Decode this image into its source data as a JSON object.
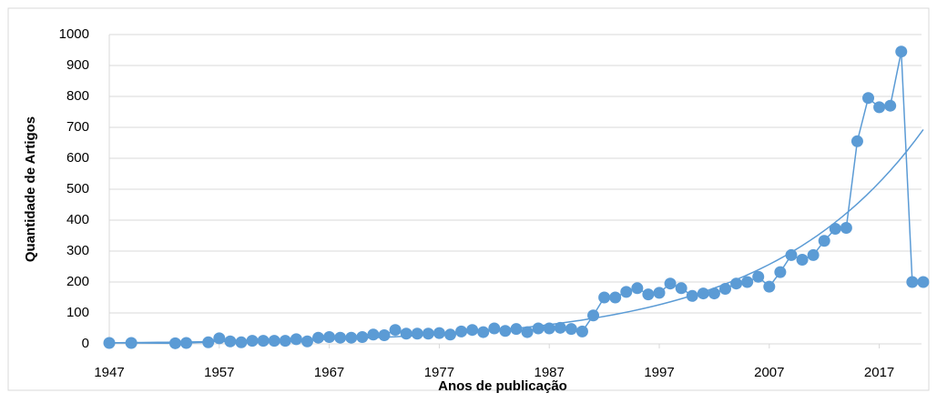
{
  "chart_data": {
    "type": "line",
    "xlabel": "Anos de publicação",
    "ylabel": "Quantidade de Artigos",
    "x": [
      1947,
      1949,
      1953,
      1954,
      1956,
      1957,
      1958,
      1959,
      1960,
      1961,
      1962,
      1963,
      1964,
      1965,
      1966,
      1967,
      1968,
      1969,
      1970,
      1971,
      1972,
      1973,
      1974,
      1975,
      1976,
      1977,
      1978,
      1979,
      1980,
      1981,
      1982,
      1983,
      1984,
      1985,
      1986,
      1987,
      1988,
      1989,
      1990,
      1991,
      1992,
      1993,
      1994,
      1995,
      1996,
      1997,
      1998,
      1999,
      2000,
      2001,
      2002,
      2003,
      2004,
      2005,
      2006,
      2007,
      2008,
      2009,
      2010,
      2011,
      2012,
      2013,
      2014,
      2015,
      2016,
      2017,
      2018,
      2019,
      2020,
      2021
    ],
    "series": [
      {
        "color": "#5b9bd5",
        "values": [
          3,
          3,
          2,
          3,
          5,
          18,
          8,
          5,
          10,
          10,
          10,
          10,
          15,
          8,
          20,
          22,
          20,
          20,
          22,
          30,
          28,
          45,
          33,
          33,
          33,
          35,
          30,
          40,
          45,
          38,
          50,
          42,
          48,
          38,
          50,
          50,
          52,
          48,
          40,
          92,
          150,
          150,
          168,
          180,
          160,
          165,
          195,
          180,
          155,
          163,
          163,
          178,
          195,
          200,
          217,
          185,
          232,
          287,
          272,
          287,
          333,
          372,
          375,
          655,
          795,
          765,
          770,
          945,
          200,
          200
        ]
      }
    ],
    "trendline": "exponential",
    "xlim": [
      1947,
      2022
    ],
    "xticks": [
      1947,
      1957,
      1967,
      1977,
      1987,
      1997,
      2007,
      2017
    ],
    "ylim": [
      0,
      1000
    ],
    "yticks": [
      0,
      100,
      200,
      300,
      400,
      500,
      600,
      700,
      800,
      900,
      1000
    ],
    "grid": true
  }
}
